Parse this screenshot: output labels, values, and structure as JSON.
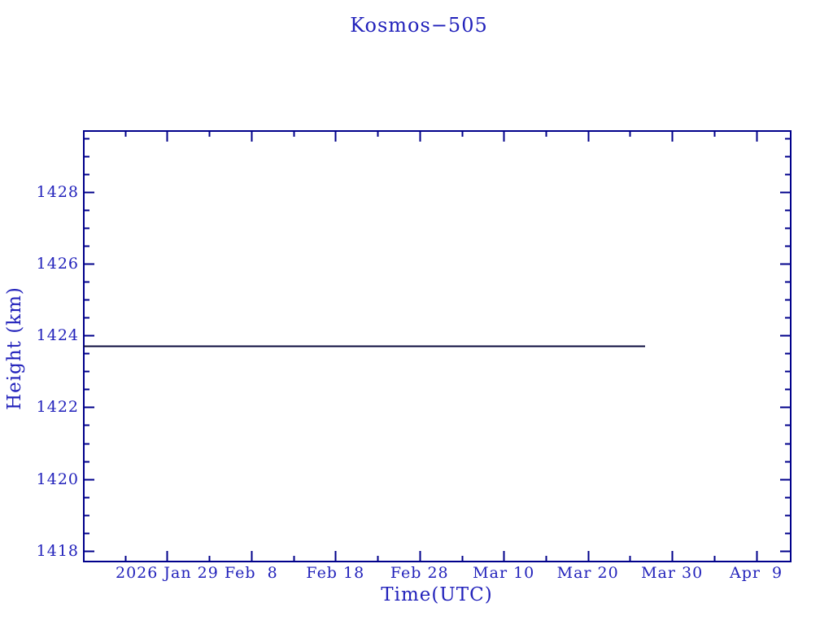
{
  "colors": {
    "background": "#ffffff",
    "frame": "#00008b",
    "label_text": "#2222bb",
    "series_line": "#0a0a3c"
  },
  "chart_data": {
    "type": "line",
    "title": "Kosmos−505",
    "xlabel": "Time(UTC)",
    "ylabel": "Height (km)",
    "grid": false,
    "legend": null,
    "x_axis": {
      "unit": "days relative to 2026 Jan 29",
      "lim": [
        -9.9,
        74.1
      ],
      "minor_step": 5,
      "major_ticks": [
        {
          "value": 0,
          "label": "2026 Jan 29"
        },
        {
          "value": 10,
          "label": "Feb  8"
        },
        {
          "value": 20,
          "label": "Feb 18"
        },
        {
          "value": 30,
          "label": "Feb 28"
        },
        {
          "value": 40,
          "label": "Mar 10"
        },
        {
          "value": 50,
          "label": "Mar 20"
        },
        {
          "value": 60,
          "label": "Mar 30"
        },
        {
          "value": 70,
          "label": "Apr  9"
        }
      ]
    },
    "y_axis": {
      "lim": [
        1417.7,
        1429.7
      ],
      "minor_step": 0.5,
      "major_ticks": [
        {
          "value": 1418,
          "label": "1418"
        },
        {
          "value": 1420,
          "label": "1420"
        },
        {
          "value": 1422,
          "label": "1422"
        },
        {
          "value": 1424,
          "label": "1424"
        },
        {
          "value": 1426,
          "label": "1426"
        },
        {
          "value": 1428,
          "label": "1428"
        }
      ]
    },
    "series": [
      {
        "name": "orbit-height",
        "color": "#0a0a3c",
        "points": [
          {
            "x": -9.9,
            "y": 1423.7
          },
          {
            "x": 56.8,
            "y": 1423.7
          }
        ]
      }
    ]
  }
}
